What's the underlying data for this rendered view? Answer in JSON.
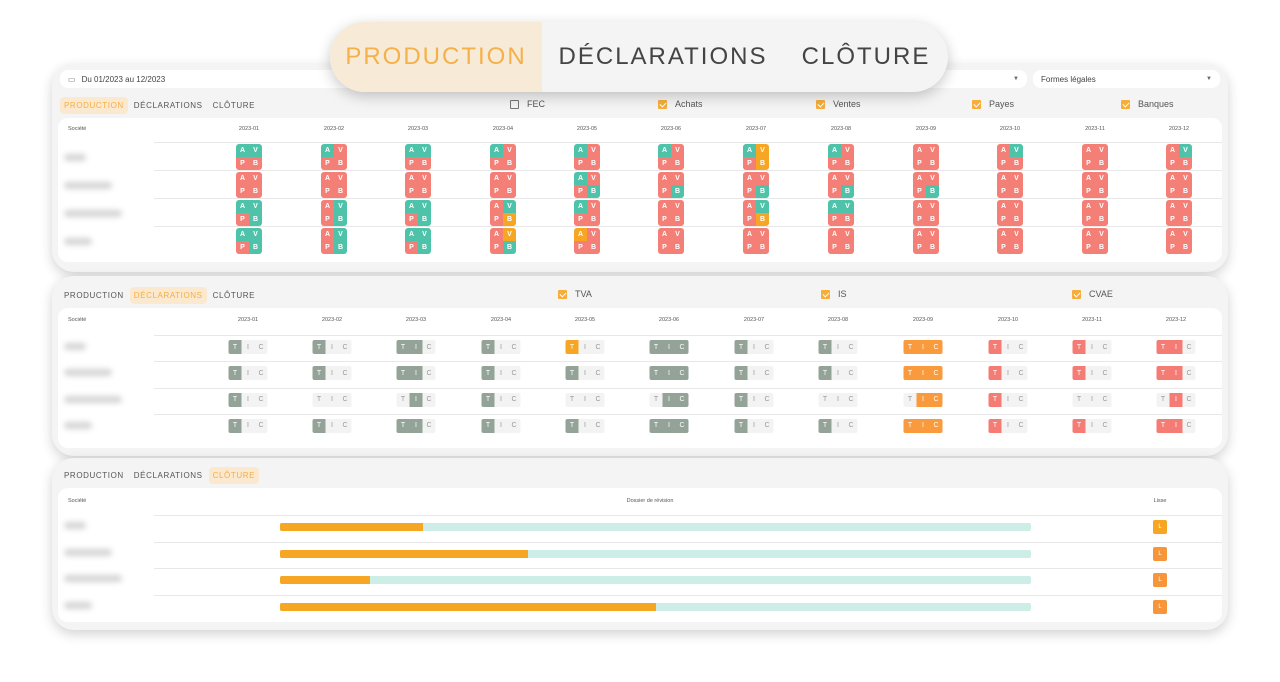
{
  "top_tabs": [
    {
      "label": "PRODUCTION",
      "active": true
    },
    {
      "label": "DÉCLARATIONS",
      "active": false
    },
    {
      "label": "CLÔTURE",
      "active": false
    }
  ],
  "filters": {
    "date_range": "Du 01/2023 au 12/2023",
    "middle_select": "",
    "legal_forms": "Formes légales"
  },
  "panel_tabs": [
    "PRODUCTION",
    "DÉCLARATIONS",
    "CLÔTURE"
  ],
  "months": [
    "2023-01",
    "2023-02",
    "2023-03",
    "2023-04",
    "2023-05",
    "2023-06",
    "2023-07",
    "2023-08",
    "2023-09",
    "2023-10",
    "2023-11",
    "2023-12"
  ],
  "colors": {
    "green": "#4fc3a9",
    "red": "#f47f77",
    "orange": "#f6a623",
    "slate": "#93a397",
    "decl_orange": "#f99a3c",
    "decl_red": "#f47c74",
    "none": "#f3f3f3",
    "progress_track": "#cdeee6"
  },
  "production": {
    "company_header": "Société",
    "checkboxes": [
      {
        "label": "FEC",
        "checked": false
      },
      {
        "label": "Achats",
        "checked": true
      },
      {
        "label": "Ventes",
        "checked": true
      },
      {
        "label": "Payes",
        "checked": true
      },
      {
        "label": "Banques",
        "checked": true
      }
    ],
    "letters": [
      "A",
      "V",
      "P",
      "B"
    ],
    "rows": [
      [
        "ggrr",
        "grrr",
        "ggrr",
        "grrr",
        "grrr",
        "grrr",
        "goro",
        "grrr",
        "rrrr",
        "rgrr",
        "rrrr",
        "rgrr"
      ],
      [
        "rrrr",
        "rrrr",
        "rrrr",
        "rrrr",
        "grrg",
        "rrrg",
        "rrrg",
        "rrrg",
        "rrrg",
        "rrrr",
        "rrrr",
        "rrrr"
      ],
      [
        "ggrg",
        "rgrg",
        "ggrg",
        "rgro",
        "grrr",
        "rrrr",
        "rgro",
        "ggrr",
        "rrrr",
        "rrrr",
        "rrrr",
        "rrrr"
      ],
      [
        "ggrg",
        "rgrg",
        "ggrg",
        "rorg",
        "orrr",
        "rrrr",
        "rrrr",
        "rrrr",
        "rrrr",
        "rrrr",
        "rrrr",
        "rrrr"
      ]
    ]
  },
  "declarations": {
    "company_header": "Société",
    "checkboxes": [
      {
        "label": "TVA",
        "checked": true
      },
      {
        "label": "IS",
        "checked": true
      },
      {
        "label": "CVAE",
        "checked": true
      }
    ],
    "letters": [
      "T",
      "I",
      "C"
    ],
    "rows": [
      [
        "snn",
        "snn",
        "ssn",
        "snn",
        "ynn",
        "sss",
        "snn",
        "snn",
        "ooo",
        "rnn",
        "rnn",
        "rrn"
      ],
      [
        "snn",
        "snn",
        "ssn",
        "snn",
        "snn",
        "sss",
        "snn",
        "snn",
        "ooo",
        "rnn",
        "rnn",
        "rrn"
      ],
      [
        "snn",
        "nnn",
        "nsn",
        "snn",
        "nnn",
        "nss",
        "snn",
        "nnn",
        "noo",
        "rnn",
        "nnn",
        "nrn"
      ],
      [
        "snn",
        "snn",
        "ssn",
        "snn",
        "snn",
        "sss",
        "snn",
        "snn",
        "ooo",
        "rnn",
        "rnn",
        "rrn"
      ]
    ]
  },
  "cloture": {
    "company_header": "Société",
    "review_header": "Dossier de révision",
    "lisse_header": "Lisse",
    "rows": [
      {
        "progress_percent": 19,
        "lisse": "L",
        "lisse_color": "#f6a623"
      },
      {
        "progress_percent": 33,
        "lisse": "L",
        "lisse_color": "#f7953a"
      },
      {
        "progress_percent": 12,
        "lisse": "L",
        "lisse_color": "#f7953a"
      },
      {
        "progress_percent": 50,
        "lisse": "L",
        "lisse_color": "#f7953a"
      }
    ]
  }
}
